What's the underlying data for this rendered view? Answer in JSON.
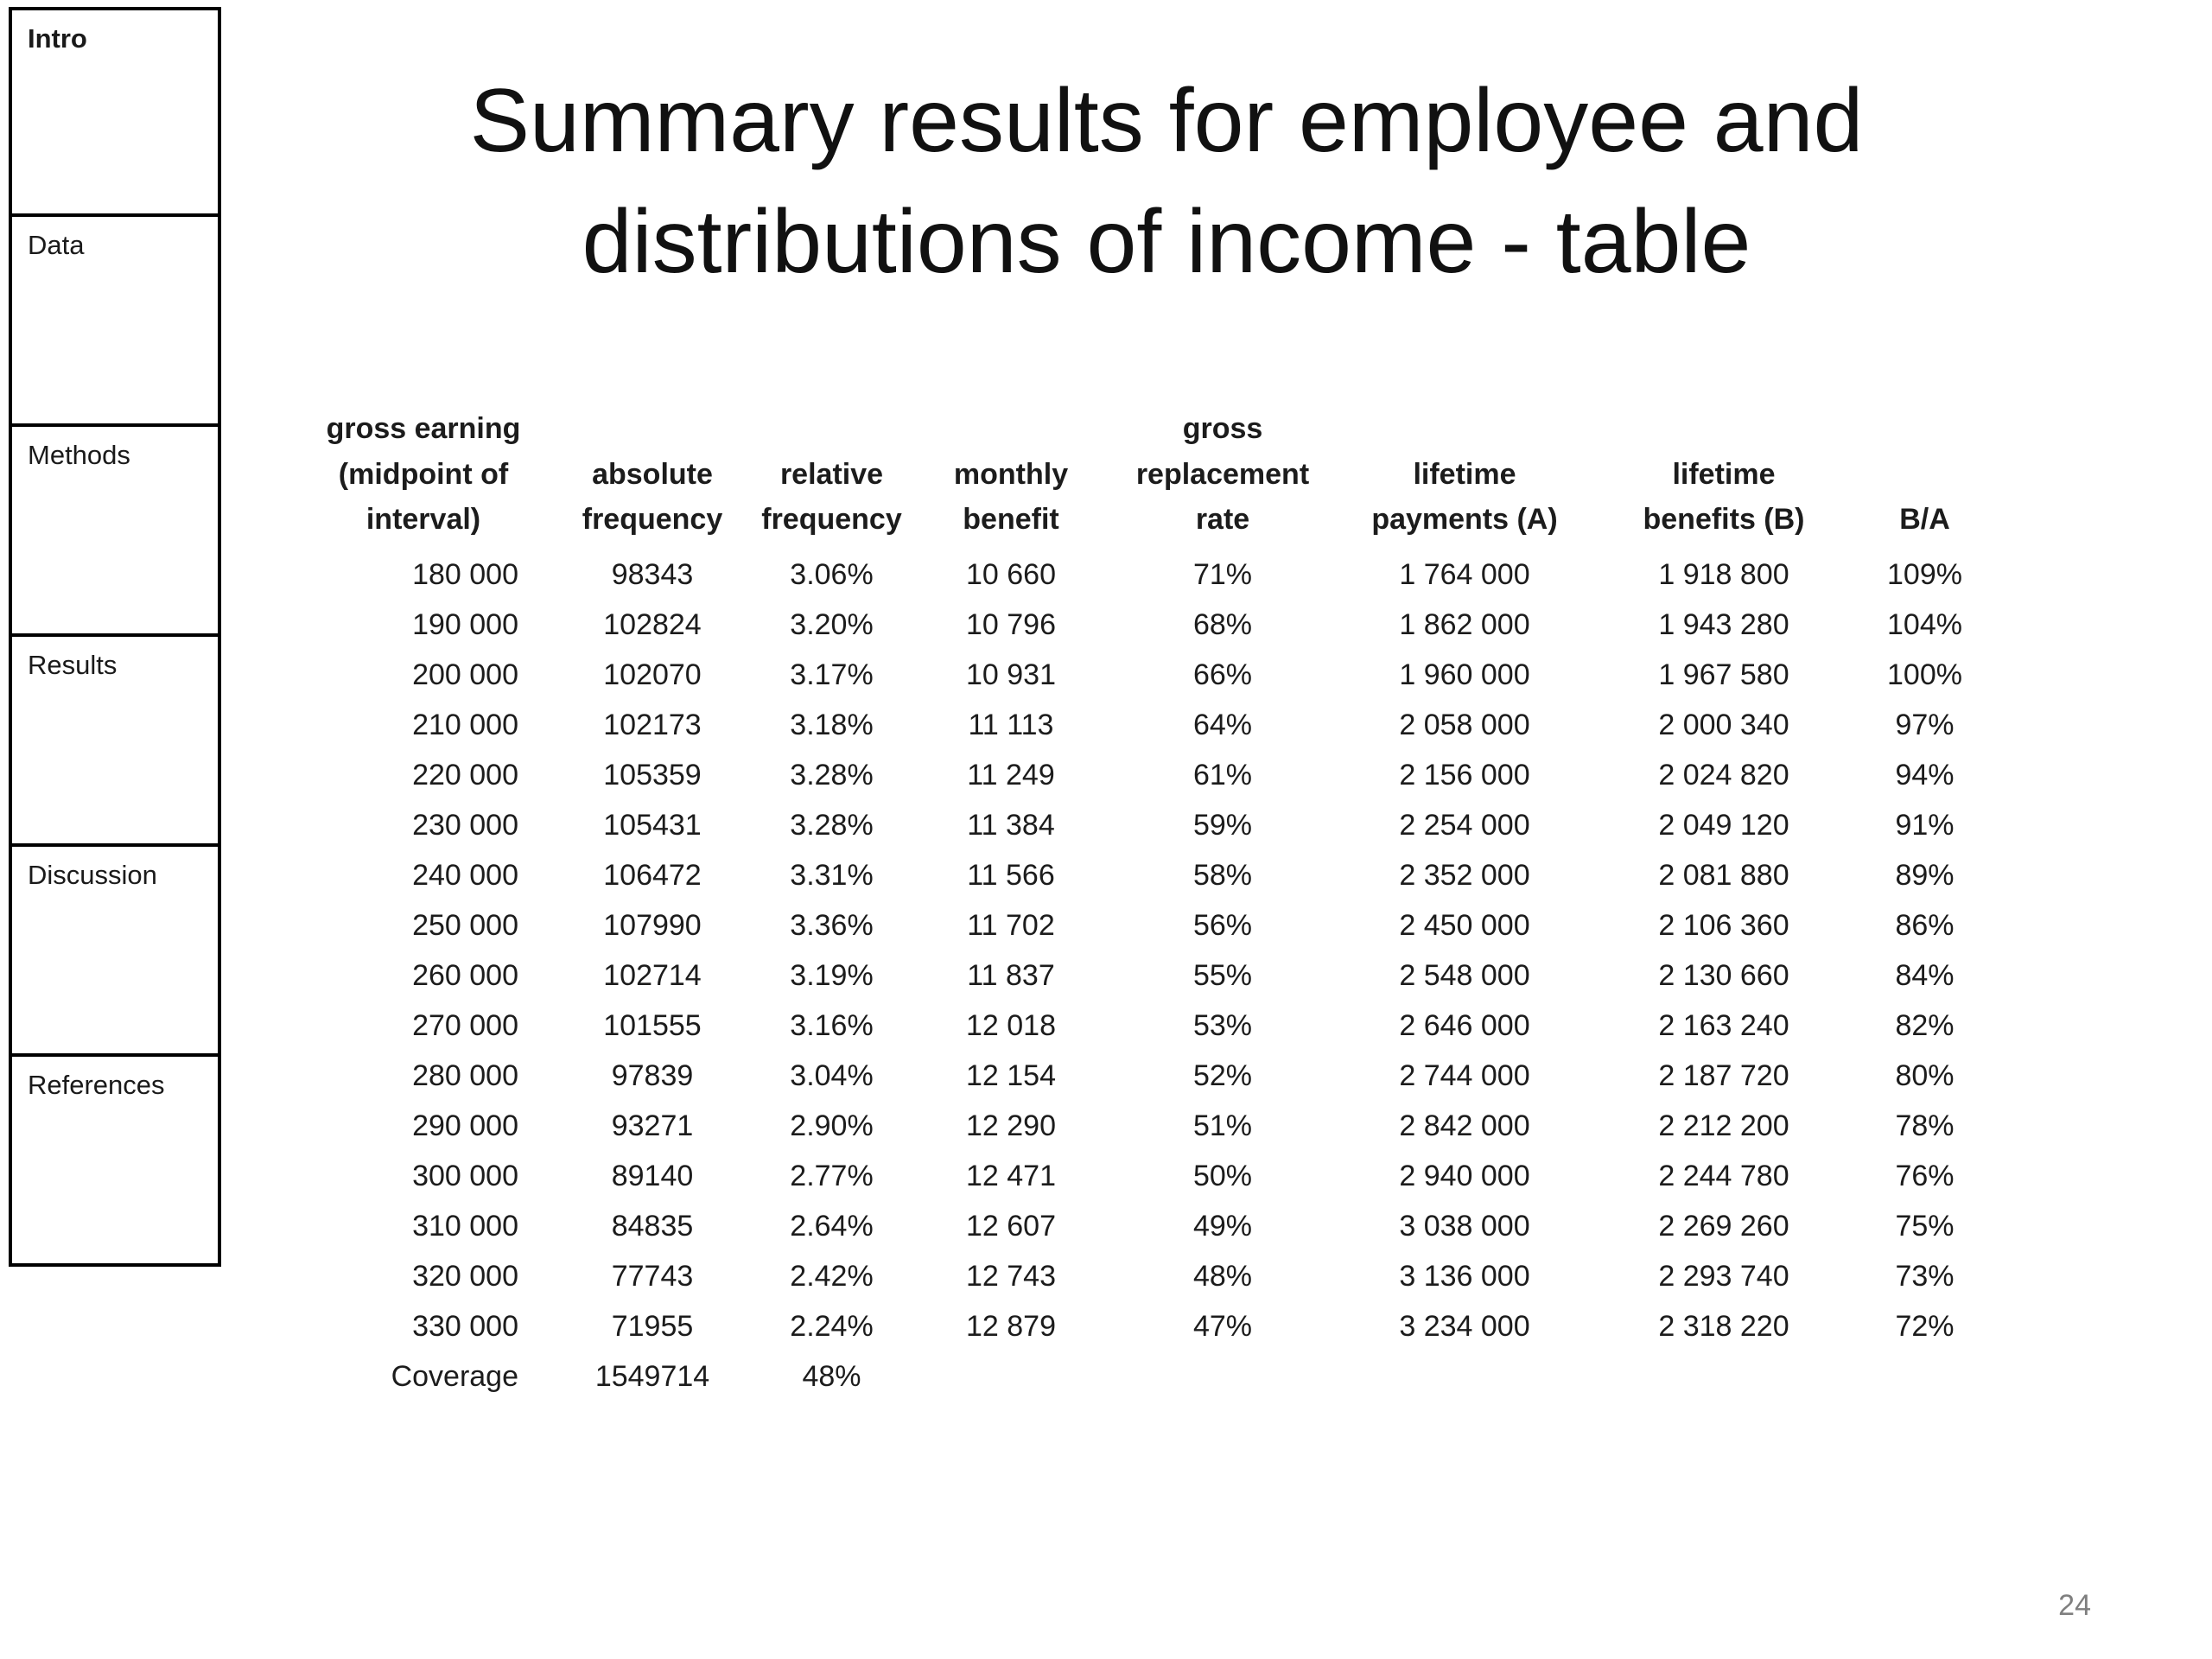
{
  "sidebar": {
    "items": [
      "Intro",
      "Data",
      "Methods",
      "Results",
      "Discussion",
      "References"
    ]
  },
  "title": {
    "line1": "Summary results for employee and",
    "line2": "distributions of income - table"
  },
  "table": {
    "headers": [
      "gross earning\n(midpoint of\ninterval)",
      "absolute\nfrequency",
      "relative\nfrequency",
      "monthly\nbenefit",
      "gross\nreplacement\nrate",
      "lifetime\npayments (A)",
      "lifetime\nbenefits (B)",
      "B/A"
    ],
    "rows": [
      [
        "180 000",
        "98343",
        "3.06%",
        "10 660",
        "71%",
        "1 764 000",
        "1 918 800",
        "109%"
      ],
      [
        "190 000",
        "102824",
        "3.20%",
        "10 796",
        "68%",
        "1 862 000",
        "1 943 280",
        "104%"
      ],
      [
        "200 000",
        "102070",
        "3.17%",
        "10 931",
        "66%",
        "1 960 000",
        "1 967 580",
        "100%"
      ],
      [
        "210 000",
        "102173",
        "3.18%",
        "11 113",
        "64%",
        "2 058 000",
        "2 000 340",
        "97%"
      ],
      [
        "220 000",
        "105359",
        "3.28%",
        "11 249",
        "61%",
        "2 156 000",
        "2 024 820",
        "94%"
      ],
      [
        "230 000",
        "105431",
        "3.28%",
        "11 384",
        "59%",
        "2 254 000",
        "2 049 120",
        "91%"
      ],
      [
        "240 000",
        "106472",
        "3.31%",
        "11 566",
        "58%",
        "2 352 000",
        "2 081 880",
        "89%"
      ],
      [
        "250 000",
        "107990",
        "3.36%",
        "11 702",
        "56%",
        "2 450 000",
        "2 106 360",
        "86%"
      ],
      [
        "260 000",
        "102714",
        "3.19%",
        "11 837",
        "55%",
        "2 548 000",
        "2 130 660",
        "84%"
      ],
      [
        "270 000",
        "101555",
        "3.16%",
        "12 018",
        "53%",
        "2 646 000",
        "2 163 240",
        "82%"
      ],
      [
        "280 000",
        "97839",
        "3.04%",
        "12 154",
        "52%",
        "2 744 000",
        "2 187 720",
        "80%"
      ],
      [
        "290 000",
        "93271",
        "2.90%",
        "12 290",
        "51%",
        "2 842 000",
        "2 212 200",
        "78%"
      ],
      [
        "300 000",
        "89140",
        "2.77%",
        "12 471",
        "50%",
        "2 940 000",
        "2 244 780",
        "76%"
      ],
      [
        "310 000",
        "84835",
        "2.64%",
        "12 607",
        "49%",
        "3 038 000",
        "2 269 260",
        "75%"
      ],
      [
        "320 000",
        "77743",
        "2.42%",
        "12 743",
        "48%",
        "3 136 000",
        "2 293 740",
        "73%"
      ],
      [
        "330 000",
        "71955",
        "2.24%",
        "12 879",
        "47%",
        "3 234 000",
        "2 318 220",
        "72%"
      ]
    ],
    "summary_row": [
      "Coverage",
      "1549714",
      "48%",
      "",
      "",
      "",
      "",
      ""
    ]
  },
  "page_number": "24"
}
